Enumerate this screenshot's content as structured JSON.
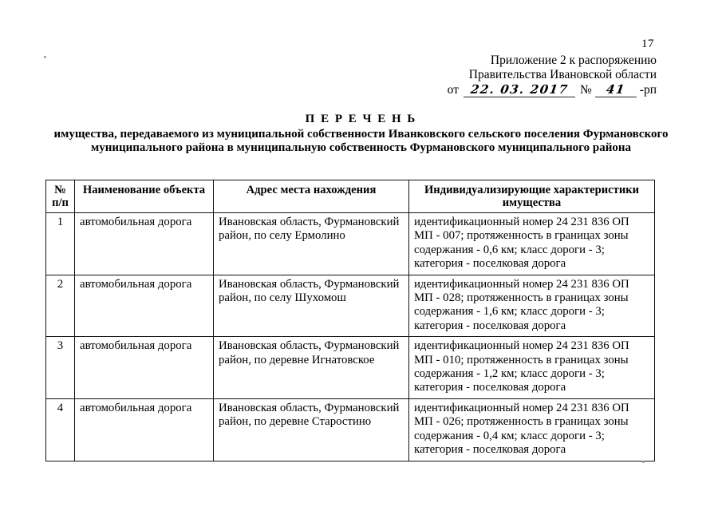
{
  "page": {
    "number": "17",
    "header_line1": "Приложение 2 к распоряжению",
    "header_line2": "Правительства Ивановской области",
    "order_line": {
      "prefix": "от",
      "date": "22. 03. 2017",
      "number_sign": "№",
      "number": "41",
      "suffix": "-рп"
    },
    "title": "П Е Р Е Ч Е Н Ь",
    "subtitle": "имущества, передаваемого из муниципальной собственности Иванковского сельского поселения Фурмановского муниципального района в муниципальную собственность Фурмановского муниципального района"
  },
  "table": {
    "headers": {
      "num_line1": "№",
      "num_line2": "п/п",
      "name": "Наименование объекта",
      "address": "Адрес места нахождения",
      "characteristics": "Индивидуализирующие характеристики имущества"
    },
    "rows": [
      {
        "num": "1",
        "name": "автомобильная дорога",
        "address": "Ивановская область, Фурмановский район, по селу Ермолино",
        "characteristics": "идентификационный номер 24 231 836 ОП МП - 007; протяженность в границах зоны содержания - 0,6 км; класс дороги - 3; категория - поселковая дорога"
      },
      {
        "num": "2",
        "name": "автомобильная дорога",
        "address": "Ивановская область, Фурмановский район, по селу Шухомош",
        "characteristics": "идентификационный номер 24 231 836 ОП МП - 028; протяженность в границах зоны содержания - 1,6 км; класс дороги - 3; категория - поселковая дорога"
      },
      {
        "num": "3",
        "name": "автомобильная дорога",
        "address": "Ивановская область, Фурмановский район, по деревне Игнатовское",
        "characteristics": "идентификационный номер 24 231 836 ОП МП - 010; протяженность в границах зоны содержания - 1,2 км; класс дороги - 3; категория - поселковая дорога"
      },
      {
        "num": "4",
        "name": "автомобильная дорога",
        "address": "Ивановская область, Фурмановский район, по деревне Старостино",
        "characteristics": "идентификационный номер 24 231 836 ОП МП - 026; протяженность в границах зоны содержания - 0,4 км; класс дороги - 3; категория - поселковая дорога"
      }
    ]
  }
}
